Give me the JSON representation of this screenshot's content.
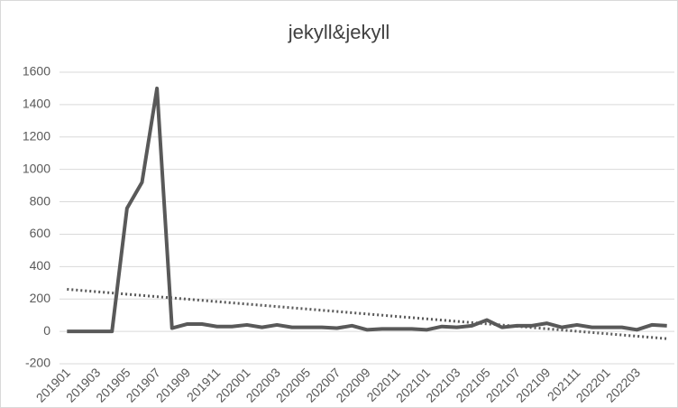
{
  "chart_data": {
    "type": "line",
    "title": "jekyll&jekyll",
    "categories": [
      "201901",
      null,
      "201903",
      null,
      "201905",
      null,
      "201907",
      null,
      "201909",
      null,
      "201911",
      null,
      "202001",
      null,
      "202003",
      null,
      "202005",
      null,
      "202007",
      null,
      "202009",
      null,
      "202011",
      null,
      "202101",
      null,
      "202103",
      null,
      "202105",
      null,
      "202107",
      null,
      "202109",
      null,
      "202111",
      null,
      "202201",
      null,
      "202203",
      null,
      null
    ],
    "series": [
      {
        "color": "#595959",
        "values": [
          0,
          0,
          0,
          0,
          760,
          920,
          1500,
          20,
          45,
          45,
          30,
          30,
          40,
          25,
          40,
          25,
          25,
          25,
          20,
          35,
          10,
          15,
          15,
          15,
          10,
          30,
          25,
          35,
          70,
          25,
          35,
          35,
          50,
          25,
          40,
          25,
          25,
          25,
          10,
          40,
          35
        ]
      }
    ],
    "trendline": {
      "color": "#595959",
      "style": "dotted",
      "values": [
        260,
        -45
      ]
    },
    "ylim": [
      -200,
      1600
    ],
    "yticks": [
      -200,
      0,
      200,
      400,
      600,
      800,
      1000,
      1200,
      1400,
      1600
    ],
    "grid": true
  }
}
